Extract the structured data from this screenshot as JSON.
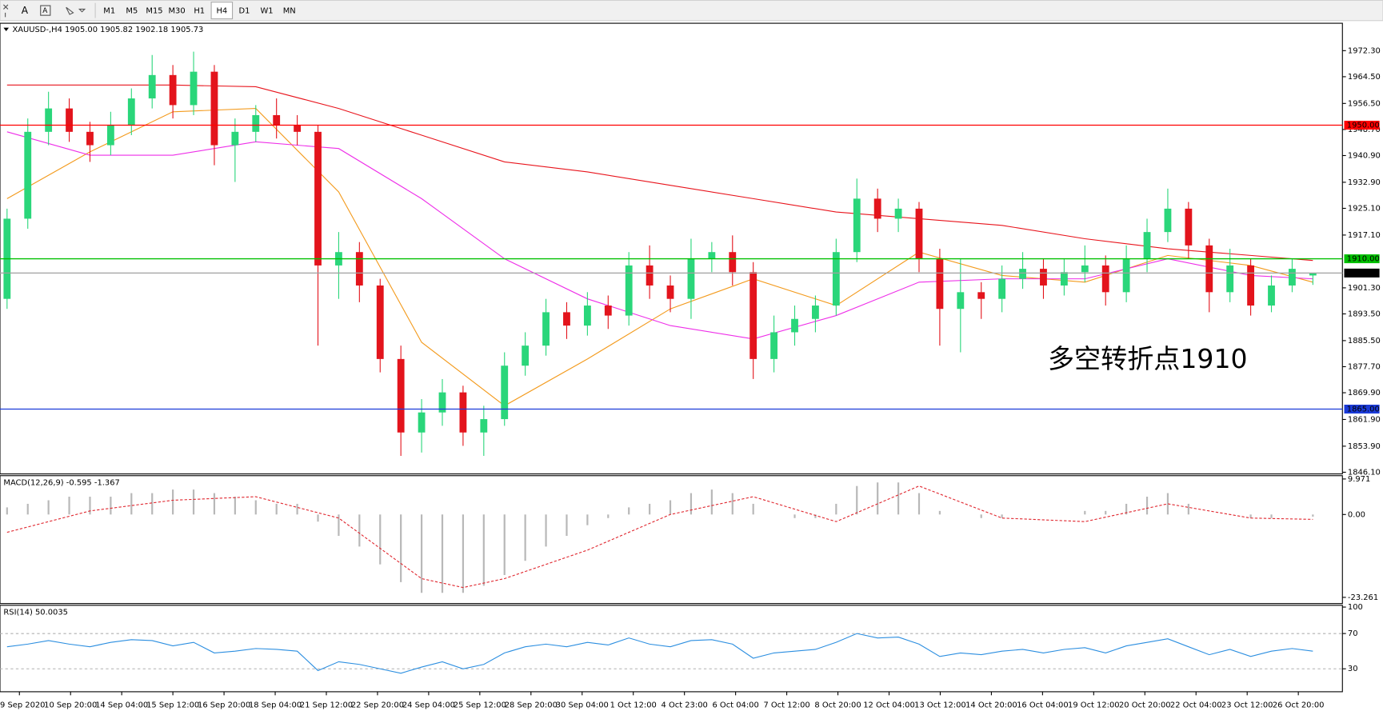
{
  "toolbar": {
    "text_tool": "A",
    "timeframes": [
      "M1",
      "M5",
      "M15",
      "M30",
      "H1",
      "H4",
      "D1",
      "W1",
      "MN"
    ],
    "active": "H4"
  },
  "time_axis": {
    "labels": [
      "9 Sep 2020",
      "10 Sep 20:00",
      "14 Sep 04:00",
      "15 Sep 12:00",
      "16 Sep 20:00",
      "18 Sep 04:00",
      "21 Sep 12:00",
      "22 Sep 20:00",
      "24 Sep 04:00",
      "25 Sep 12:00",
      "28 Sep 20:00",
      "30 Sep 04:00",
      "1 Oct 12:00",
      "4 Oct 23:00",
      "6 Oct 04:00",
      "7 Oct 12:00",
      "8 Oct 20:00",
      "12 Oct 04:00",
      "13 Oct 12:00",
      "14 Oct 20:00",
      "16 Oct 04:00",
      "19 Oct 12:00",
      "20 Oct 20:00",
      "22 Oct 04:00",
      "23 Oct 12:00",
      "26 Oct 20:00"
    ]
  },
  "chart_data": [
    {
      "type": "candlestick",
      "title": "XAUUSD-,H4  1905.00 1905.82 1902.18 1905.73",
      "open": [
        1898,
        1922,
        1948,
        1955,
        1948,
        1944,
        1950,
        1958,
        1965,
        1956,
        1966,
        1944,
        1948,
        1953,
        1950,
        1948,
        1908,
        1912,
        1902,
        1880,
        1858,
        1864,
        1870,
        1858,
        1862,
        1878,
        1884,
        1894,
        1890,
        1896,
        1893,
        1908,
        1902,
        1898,
        1910,
        1912,
        1906,
        1880,
        1888,
        1892,
        1896,
        1912,
        1928,
        1922,
        1925,
        1910,
        1895,
        1900,
        1898,
        1904,
        1907,
        1902,
        1906,
        1908,
        1900,
        1910,
        1918,
        1925,
        1914,
        1900,
        1908,
        1896,
        1902,
        1905.0
      ],
      "high": [
        1925,
        1952,
        1960,
        1958,
        1951,
        1954,
        1961,
        1971,
        1968,
        1972,
        1968,
        1952,
        1956,
        1958,
        1953,
        1950,
        1918,
        1915,
        1904,
        1884,
        1868,
        1874,
        1872,
        1866,
        1882,
        1888,
        1898,
        1897,
        1900,
        1899,
        1912,
        1914,
        1905,
        1916,
        1915,
        1917,
        1909,
        1893,
        1896,
        1899,
        1916,
        1934,
        1931,
        1928,
        1927,
        1913,
        1910,
        1903,
        1908,
        1912,
        1910,
        1910,
        1914,
        1911,
        1914,
        1922,
        1931,
        1927,
        1916,
        1913,
        1910,
        1905,
        1910,
        1905.82
      ],
      "low": [
        1895,
        1919,
        1944,
        1945,
        1939,
        1941,
        1947,
        1955,
        1952,
        1953,
        1938,
        1933,
        1945,
        1946,
        1944,
        1884,
        1898,
        1897,
        1876,
        1851,
        1852,
        1860,
        1854,
        1851,
        1860,
        1875,
        1881,
        1886,
        1887,
        1889,
        1890,
        1898,
        1894,
        1892,
        1906,
        1902,
        1874,
        1876,
        1884,
        1888,
        1893,
        1909,
        1918,
        1918,
        1906,
        1884,
        1882,
        1892,
        1894,
        1901,
        1898,
        1899,
        1903,
        1896,
        1897,
        1906,
        1915,
        1910,
        1894,
        1897,
        1893,
        1894,
        1900,
        1902.18
      ],
      "close": [
        1922,
        1948,
        1955,
        1948,
        1944,
        1950,
        1958,
        1965,
        1956,
        1966,
        1944,
        1948,
        1953,
        1950,
        1948,
        1908,
        1912,
        1902,
        1880,
        1858,
        1864,
        1870,
        1858,
        1862,
        1878,
        1884,
        1894,
        1890,
        1896,
        1893,
        1908,
        1902,
        1898,
        1910,
        1912,
        1906,
        1880,
        1888,
        1892,
        1896,
        1912,
        1928,
        1922,
        1925,
        1910,
        1895,
        1900,
        1898,
        1904,
        1907,
        1902,
        1906,
        1908,
        1900,
        1910,
        1918,
        1925,
        1914,
        1900,
        1908,
        1896,
        1902,
        1907,
        1905.73
      ],
      "up_color": "#2ad67a",
      "down_color": "#e3141c",
      "ylim": [
        1845.6,
        1980.5
      ],
      "yticks": [
        {
          "value": 1972.3,
          "label": "1972.30"
        },
        {
          "value": 1964.5,
          "label": "1964.50"
        },
        {
          "value": 1956.5,
          "label": "1956.50"
        },
        {
          "value": 1948.7,
          "label": "1948.70"
        },
        {
          "value": 1940.9,
          "label": "1940.90"
        },
        {
          "value": 1932.9,
          "label": "1932.90"
        },
        {
          "value": 1925.1,
          "label": "1925.10"
        },
        {
          "value": 1917.1,
          "label": "1917.10"
        },
        {
          "value": 1901.3,
          "label": "1901.30"
        },
        {
          "value": 1893.5,
          "label": "1893.50"
        },
        {
          "value": 1885.5,
          "label": "1885.50"
        },
        {
          "value": 1877.7,
          "label": "1877.70"
        },
        {
          "value": 1869.9,
          "label": "1869.90"
        },
        {
          "value": 1861.9,
          "label": "1861.90"
        },
        {
          "value": 1853.9,
          "label": "1853.90"
        },
        {
          "value": 1846.1,
          "label": "1846.10"
        }
      ],
      "levels": [
        {
          "value": 1950,
          "label": "1950.00",
          "color": "#ff0000",
          "label_color": "#ff0000"
        },
        {
          "value": 1910,
          "label": "1910.00",
          "color": "#00c000",
          "label_color": "#00c000"
        },
        {
          "value": 1905.73,
          "label": "1905.73",
          "color": "#a0a0a0",
          "label_color": "#000000"
        },
        {
          "value": 1865,
          "label": "1865.00",
          "color": "#1a3ad8",
          "label_color": "#1a3ad8"
        }
      ],
      "series": [
        {
          "color": "#f39a1c",
          "x": [
            0,
            4,
            8,
            12,
            16,
            20,
            24,
            28,
            32,
            36,
            40,
            44,
            48,
            52,
            56,
            60,
            63
          ],
          "values": [
            1928,
            1942,
            1954,
            1955,
            1930,
            1885,
            1866,
            1880,
            1895,
            1904,
            1896,
            1912,
            1905,
            1903,
            1911,
            1908,
            1903
          ]
        },
        {
          "color": "#ee2ee8",
          "x": [
            0,
            4,
            8,
            12,
            16,
            20,
            24,
            28,
            32,
            36,
            40,
            44,
            48,
            52,
            56,
            60,
            63
          ],
          "values": [
            1948,
            1941,
            1941,
            1945,
            1943,
            1928,
            1910,
            1898,
            1890,
            1886,
            1893,
            1903,
            1904,
            1904,
            1910,
            1905,
            1904
          ]
        },
        {
          "color": "#e8141c",
          "x": [
            0,
            4,
            8,
            12,
            16,
            20,
            24,
            28,
            32,
            36,
            40,
            44,
            48,
            52,
            56,
            60,
            63
          ],
          "values": [
            1962,
            1962,
            1962,
            1961.5,
            1955,
            1947,
            1939,
            1936,
            1932,
            1928,
            1924,
            1922,
            1920,
            1916,
            1913,
            1911,
            1909.5
          ]
        }
      ],
      "annotation": "多空转折点1910",
      "annotation_color": "#e3141c"
    },
    {
      "type": "macd",
      "title": "MACD(12,26,9) -0.595 -1.367",
      "ylim": [
        -25,
        10.9
      ],
      "yticks": [
        9.971,
        {
          "value": 0,
          "label": "0.00"
        },
        -23.261
      ],
      "histogram": {
        "color": "#b8b8b8",
        "values": [
          2,
          3,
          4,
          5,
          5,
          5,
          6,
          6,
          7,
          7,
          6,
          5,
          4,
          3,
          3,
          -2,
          -6,
          -9,
          -14,
          -19,
          -22,
          -22,
          -22,
          -20,
          -17,
          -13,
          -9,
          -6,
          -3,
          -1,
          2,
          3,
          4,
          6,
          7,
          6,
          3,
          0,
          -1,
          -1,
          3,
          8,
          9,
          9,
          6,
          1,
          0,
          -1,
          -1,
          0,
          0,
          0,
          1,
          1,
          3,
          5,
          6,
          3,
          0,
          0,
          -1,
          -1,
          0,
          -0.595
        ]
      },
      "signal": {
        "color": "#e0262e",
        "x": [
          0,
          4,
          8,
          12,
          16,
          20,
          22,
          24,
          28,
          32,
          36,
          40,
          44,
          48,
          52,
          56,
          60,
          63
        ],
        "values": [
          -5,
          1,
          4,
          5,
          -1,
          -18,
          -20.5,
          -18,
          -10,
          0,
          5,
          -2,
          8,
          -1,
          -2,
          3,
          -1,
          -1.367
        ]
      }
    },
    {
      "type": "line",
      "title": "RSI(14) 50.0035",
      "ylim": [
        4,
        102
      ],
      "yticks": [
        100,
        70,
        30
      ],
      "levels": [
        70,
        30
      ],
      "series": [
        {
          "color": "#2b8ee0",
          "values": [
            55,
            58,
            62,
            58,
            55,
            60,
            63,
            62,
            56,
            60,
            48,
            50,
            53,
            52,
            50,
            28,
            38,
            35,
            30,
            25,
            32,
            38,
            30,
            35,
            48,
            55,
            58,
            55,
            60,
            57,
            65,
            58,
            55,
            62,
            63,
            58,
            42,
            48,
            50,
            52,
            60,
            70,
            65,
            66,
            58,
            44,
            48,
            46,
            50,
            52,
            48,
            52,
            54,
            48,
            56,
            60,
            64,
            55,
            46,
            52,
            44,
            50,
            53,
            50.0035
          ]
        }
      ]
    }
  ]
}
